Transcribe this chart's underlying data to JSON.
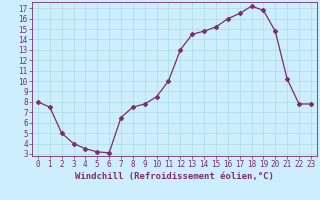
{
  "x": [
    0,
    1,
    2,
    3,
    4,
    5,
    6,
    7,
    8,
    9,
    10,
    11,
    12,
    13,
    14,
    15,
    16,
    17,
    18,
    19,
    20,
    21,
    22,
    23
  ],
  "y": [
    8.0,
    7.5,
    5.0,
    4.0,
    3.5,
    3.2,
    3.1,
    6.5,
    7.5,
    7.8,
    8.5,
    10.0,
    13.0,
    14.5,
    14.8,
    15.2,
    16.0,
    16.5,
    17.2,
    16.8,
    14.8,
    10.2,
    7.8,
    7.8
  ],
  "line_color": "#7b2d6e",
  "marker": "D",
  "marker_size": 2.2,
  "bg_color": "#cceeff",
  "grid_color": "#aadddd",
  "xlabel": "Windchill (Refroidissement éolien,°C)",
  "xlim": [
    -0.5,
    23.5
  ],
  "ylim": [
    2.8,
    17.6
  ],
  "yticks": [
    3,
    4,
    5,
    6,
    7,
    8,
    9,
    10,
    11,
    12,
    13,
    14,
    15,
    16,
    17
  ],
  "xticks": [
    0,
    1,
    2,
    3,
    4,
    5,
    6,
    7,
    8,
    9,
    10,
    11,
    12,
    13,
    14,
    15,
    16,
    17,
    18,
    19,
    20,
    21,
    22,
    23
  ],
  "axis_color": "#7b2d6e",
  "tick_fontsize": 5.5,
  "label_fontsize": 6.5
}
